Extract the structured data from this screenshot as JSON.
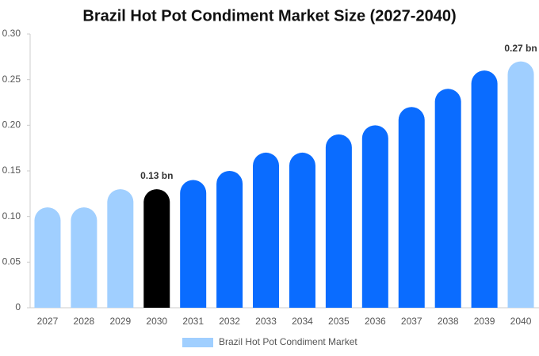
{
  "chart_data": {
    "type": "bar",
    "title": "Brazil Hot Pot Condiment Market Size (2027-2040)",
    "categories": [
      "2027",
      "2028",
      "2029",
      "2030",
      "2031",
      "2032",
      "2033",
      "2034",
      "2035",
      "2036",
      "2037",
      "2038",
      "2039",
      "2040"
    ],
    "series": [
      {
        "name": "Brazil Hot Pot Condiment Market",
        "color": "#a0cfff",
        "values": [
          0.11,
          0.11,
          0.13,
          0.13,
          0.14,
          0.15,
          0.17,
          0.17,
          0.19,
          0.2,
          0.22,
          0.24,
          0.26,
          0.27
        ],
        "value_labels": [
          null,
          null,
          null,
          "0.13 bn",
          null,
          null,
          null,
          null,
          null,
          null,
          null,
          null,
          null,
          "0.27 bn"
        ],
        "colors": [
          "#a0cfff",
          "#a0cfff",
          "#a0cfff",
          "#000000",
          "#0a6cff",
          "#0a6cff",
          "#0a6cff",
          "#0a6cff",
          "#0a6cff",
          "#0a6cff",
          "#0a6cff",
          "#0a6cff",
          "#0a6cff",
          "#a0cfff"
        ]
      }
    ],
    "ylim": [
      0,
      0.3
    ],
    "yticks": [
      0,
      0.05,
      {
        "value": 0.1,
        "label": "0.10"
      },
      0.15,
      {
        "value": 0.2,
        "label": "0.20"
      },
      0.25,
      {
        "value": 0.3,
        "label": "0.30"
      }
    ],
    "grid": false,
    "legend": "bottom"
  }
}
